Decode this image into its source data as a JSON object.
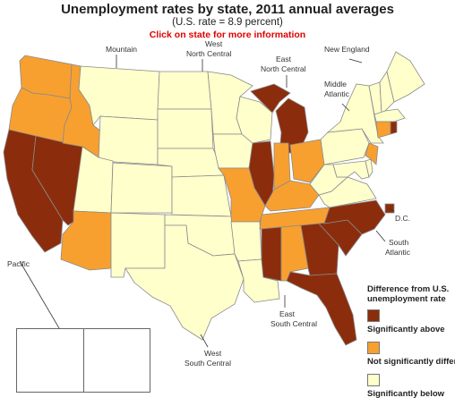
{
  "title": "Unemployment rates by state, 2011 annual averages",
  "subtitle": "(U.S. rate = 8.9 percent)",
  "click_prompt": "Click on state for more information",
  "colors": {
    "above": "#8b2d0c",
    "not_different": "#f7a030",
    "below": "#ffffcc",
    "border": "#8a8a8a"
  },
  "regions": {
    "mountain": "Mountain",
    "west_north_central": [
      "West",
      "North Central"
    ],
    "new_england": "New England",
    "east_north_central": [
      "East",
      "North Central"
    ],
    "middle_atlantic": [
      "Middle",
      "Atlantic"
    ],
    "pacific": "Pacific",
    "dc": "D.C.",
    "south_atlantic": [
      "South",
      "Atlantic"
    ],
    "east_south_central": [
      "East",
      "South Central"
    ],
    "west_south_central": [
      "West",
      "South Central"
    ]
  },
  "legend": {
    "heading": [
      "Difference from U.S.",
      "unemployment rate"
    ],
    "items": [
      {
        "label": "Significantly above",
        "category": "above"
      },
      {
        "label": "Not significantly different",
        "category": "not_different"
      },
      {
        "label": "Significantly below",
        "category": "below"
      }
    ]
  },
  "states": {
    "WA": "not_different",
    "OR": "not_different",
    "CA": "above",
    "NV": "above",
    "ID": "not_different",
    "MT": "below",
    "WY": "below",
    "UT": "below",
    "AZ": "not_different",
    "CO": "below",
    "NM": "below",
    "ND": "below",
    "SD": "below",
    "NE": "below",
    "KS": "below",
    "MN": "below",
    "IA": "below",
    "MO": "not_different",
    "OK": "below",
    "TX": "below",
    "AR": "below",
    "LA": "below",
    "WI": "below",
    "MI": "above",
    "IL": "above",
    "IN": "not_different",
    "OH": "not_different",
    "KY": "not_different",
    "TN": "not_different",
    "MS": "above",
    "AL": "not_different",
    "GA": "above",
    "FL": "above",
    "SC": "above",
    "NC": "above",
    "VA": "below",
    "WV": "below",
    "MD": "below",
    "DE": "below",
    "DC": "above",
    "PA": "below",
    "NY": "below",
    "NJ": "not_different",
    "CT": "not_different",
    "RI": "above",
    "MA": "below",
    "VT": "below",
    "NH": "below",
    "ME": "below",
    "AK": "below",
    "HI": "below"
  }
}
